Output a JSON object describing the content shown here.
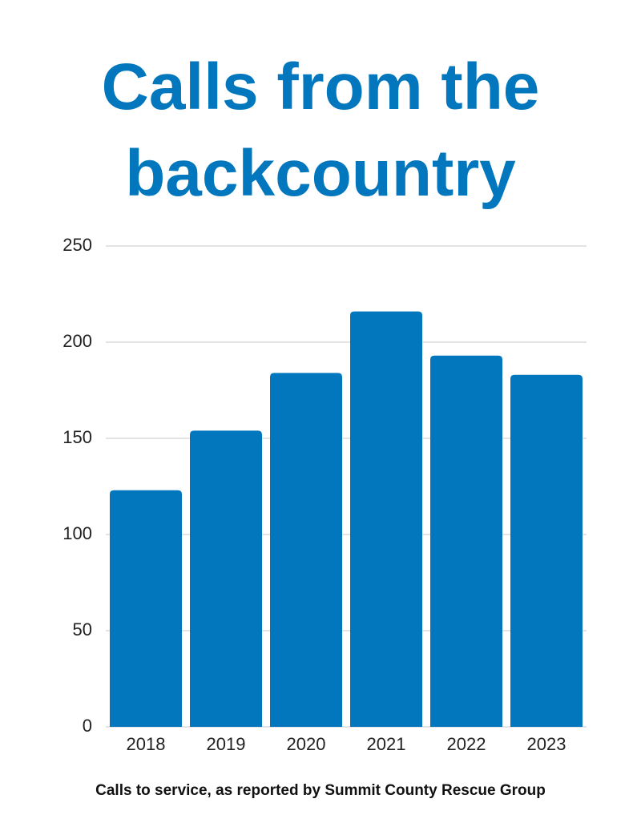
{
  "chart_data": {
    "type": "bar",
    "title": "Calls from the backcountry",
    "caption": "Calls to service, as reported by  Summit County Rescue Group",
    "categories": [
      "2018",
      "2019",
      "2020",
      "2021",
      "2022",
      "2023"
    ],
    "values": [
      123,
      154,
      184,
      216,
      193,
      183
    ],
    "color": "#0277bd",
    "ylim": [
      0,
      250
    ],
    "yticks": [
      0,
      50,
      100,
      150,
      200,
      250
    ],
    "grid": true
  }
}
